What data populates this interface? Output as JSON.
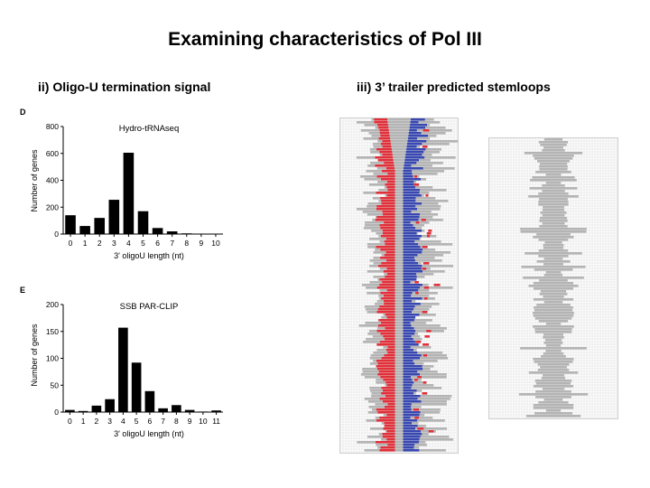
{
  "page": {
    "title": "Examining characteristics of Pol III",
    "left_heading": "ii) Oligo-U termination signal",
    "right_heading": "iii) 3’ trailer predicted stemloops"
  },
  "colors": {
    "bar": "#000000",
    "stemloop_red": "#e0303a",
    "stemloop_blue": "#3848b0",
    "stemloop_grey": "#b4b4b4",
    "grid": "#dcdcdc"
  },
  "chart_data": [
    {
      "type": "bar",
      "panel_label": "D",
      "title": "Hydro-tRNAseq",
      "xlabel": "3' oligoU length (nt)",
      "ylabel": "Number of genes",
      "categories": [
        "0",
        "1",
        "2",
        "3",
        "4",
        "5",
        "6",
        "7",
        "8",
        "9",
        "10"
      ],
      "values": [
        140,
        60,
        120,
        255,
        605,
        170,
        45,
        20,
        5,
        3,
        2
      ],
      "yticks": [
        "0",
        "200",
        "400",
        "600",
        "800"
      ],
      "ylim": [
        0,
        800
      ],
      "grid": false
    },
    {
      "type": "bar",
      "panel_label": "E",
      "title": "SSB PAR-CLIP",
      "xlabel": "3' oligoU length (nt)",
      "ylabel": "Number of genes",
      "categories": [
        "0",
        "1",
        "2",
        "3",
        "4",
        "5",
        "6",
        "7",
        "8",
        "9",
        "10",
        "11"
      ],
      "values": [
        4,
        2,
        12,
        24,
        157,
        92,
        39,
        7,
        13,
        4,
        1,
        3
      ],
      "yticks": [
        "0",
        "50",
        "100",
        "150",
        "200"
      ],
      "ylim": [
        0,
        200
      ],
      "grid": false
    }
  ]
}
